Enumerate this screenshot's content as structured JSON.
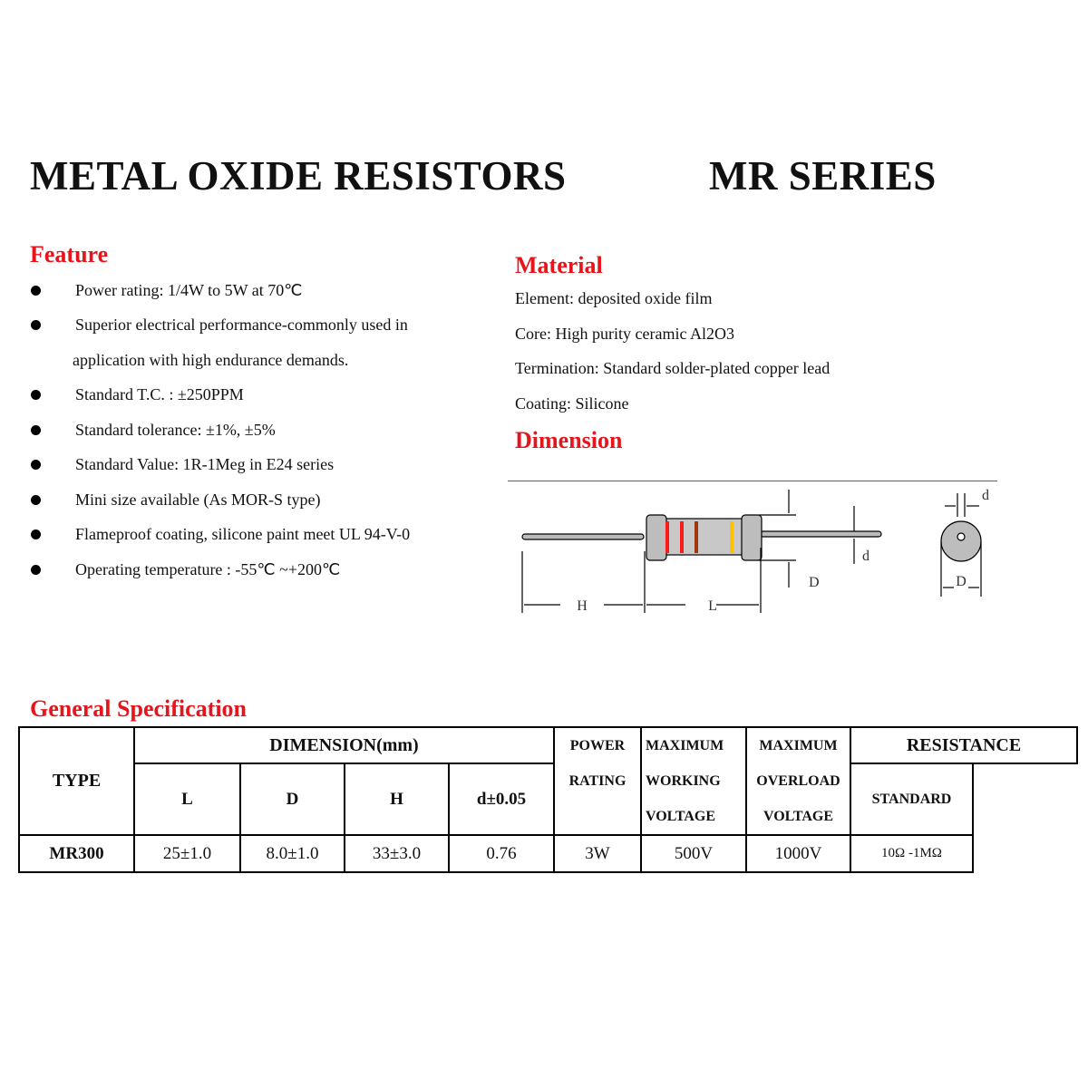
{
  "header": {
    "title": "METAL OXIDE RESISTORS",
    "series": "MR SERIES"
  },
  "feature": {
    "heading": "Feature",
    "items": [
      "Power rating: 1/4W to 5W at 70℃",
      "Superior electrical performance-commonly used in",
      "Standard T.C. : ±250PPM",
      "Standard tolerance: ±1%, ±5%",
      "Standard Value: 1R-1Meg in E24 series",
      "Mini size available (As MOR-S type)",
      "Flameproof coating, silicone paint meet UL 94-V-0",
      "Operating temperature : -55℃ ~+200℃"
    ],
    "continuation": "application with high endurance demands."
  },
  "material": {
    "heading": "Material",
    "items": [
      "Element: deposited oxide film",
      "Core: High purity ceramic Al2O3",
      "Termination: Standard solder-plated copper lead",
      "Coating: Silicone"
    ]
  },
  "dimension": {
    "heading": "Dimension",
    "labels": {
      "H": "H",
      "L": "L",
      "D": "D",
      "d": "d"
    },
    "band_colors": [
      "#ff1a1a",
      "#ff1a1a",
      "#a0380f",
      "#ffc000"
    ]
  },
  "spec": {
    "heading": "General Specification",
    "headers": {
      "type": "TYPE",
      "dimension": "DIMENSION(mm)",
      "L": "L",
      "D": "D",
      "H": "H",
      "d": "d±0.05",
      "power": [
        "POWER",
        "RATING"
      ],
      "working": [
        "MAXIMUM",
        "WORKING",
        "VOLTAGE"
      ],
      "overload": [
        "MAXIMUM",
        "OVERLOAD",
        "VOLTAGE"
      ],
      "resistance": "RESISTANCE",
      "standard": "STANDARD"
    },
    "rows": [
      {
        "type": "MR300",
        "L": "25±1.0",
        "D": "8.0±1.0",
        "H": "33±3.0",
        "d": "0.76",
        "power": "3W",
        "working": "500V",
        "overload": "1000V",
        "standard": "10Ω -1MΩ"
      }
    ]
  }
}
